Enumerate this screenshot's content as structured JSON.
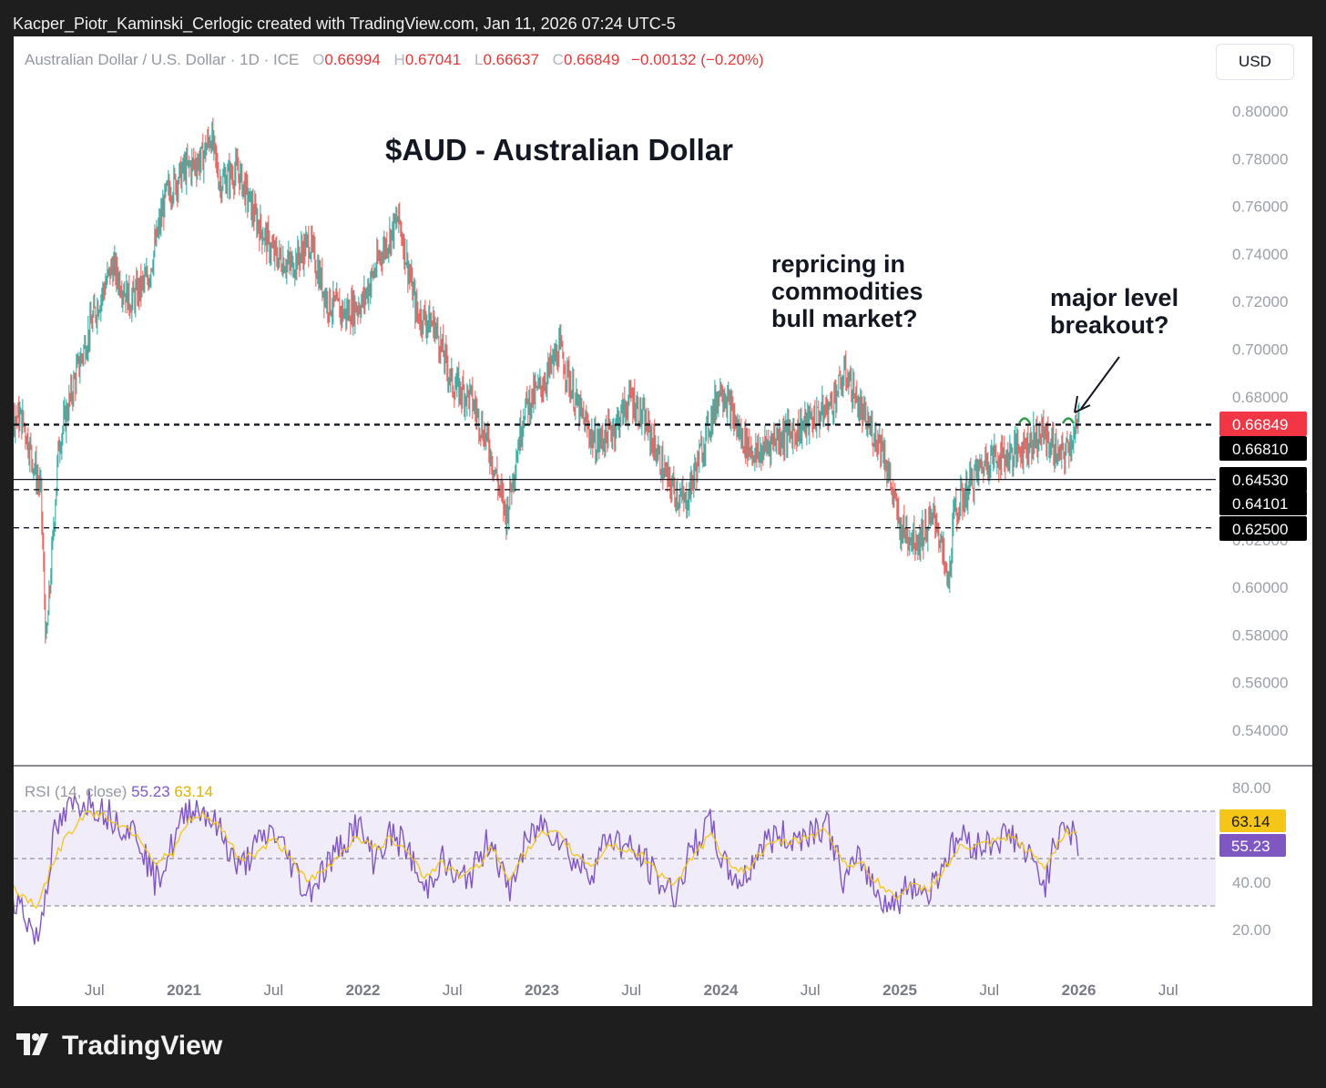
{
  "header": {
    "text": "Kacper_Piotr_Kaminski_Cerlogic created with TradingView.com, Jan 11, 2026 07:24 UTC-5"
  },
  "legend": {
    "symbol": "Australian Dollar / U.S. Dollar · 1D · ICE",
    "o_label": "O",
    "o": "0.66994",
    "h_label": "H",
    "h": "0.67041",
    "l_label": "L",
    "l": "0.66637",
    "c_label": "C",
    "c": "0.66849",
    "change": "−0.00132 (−0.20%)"
  },
  "currency_button": "USD",
  "annotations": {
    "title": "$AUD - Australian Dollar",
    "repricing": [
      "repricing in",
      "commodities",
      "bull market?"
    ],
    "breakout": [
      "major level",
      "breakout?"
    ]
  },
  "rsi_label": {
    "name": "RSI (14, close)",
    "rsi": "55.23",
    "ma": "63.14"
  },
  "brand": "TradingView",
  "colors": {
    "up": "#26a69a",
    "down": "#ef5350",
    "rsi": "#7e57c2",
    "rsi_ma": "#f5c518",
    "rsi_band": "#f0ecfa",
    "last_price": "#f23645"
  },
  "chart_data": [
    {
      "type": "line",
      "description_kind": "candlestick price series",
      "y_range": [
        0.53,
        0.81
      ],
      "y_ticks": [
        "0.80000",
        "0.78000",
        "0.76000",
        "0.74000",
        "0.72000",
        "0.70000",
        "0.68000",
        "0.66000",
        "0.64000",
        "0.62000",
        "0.60000",
        "0.58000",
        "0.56000",
        "0.54000"
      ],
      "x_ticks": [
        "Jul",
        "2021",
        "Jul",
        "2022",
        "Jul",
        "2023",
        "Jul",
        "2024",
        "Jul",
        "2025",
        "Jul",
        "2026",
        "Jul"
      ],
      "x": [
        2019.9,
        2020.0,
        2020.1,
        2020.2,
        2020.23,
        2020.3,
        2020.4,
        2020.5,
        2020.6,
        2020.7,
        2020.8,
        2020.9,
        2021.0,
        2021.1,
        2021.15,
        2021.2,
        2021.3,
        2021.4,
        2021.5,
        2021.6,
        2021.7,
        2021.8,
        2021.9,
        2022.0,
        2022.1,
        2022.2,
        2022.3,
        2022.4,
        2022.5,
        2022.6,
        2022.7,
        2022.8,
        2022.9,
        2023.0,
        2023.1,
        2023.2,
        2023.3,
        2023.4,
        2023.5,
        2023.6,
        2023.7,
        2023.8,
        2023.9,
        2024.0,
        2024.1,
        2024.2,
        2024.3,
        2024.4,
        2024.5,
        2024.6,
        2024.7,
        2024.8,
        2024.9,
        2025.0,
        2025.1,
        2025.2,
        2025.27,
        2025.3,
        2025.4,
        2025.5,
        2025.6,
        2025.7,
        2025.8,
        2025.9,
        2026.0
      ],
      "y": [
        0.688,
        0.675,
        0.67,
        0.64,
        0.575,
        0.66,
        0.69,
        0.715,
        0.735,
        0.72,
        0.73,
        0.765,
        0.775,
        0.78,
        0.79,
        0.77,
        0.775,
        0.755,
        0.74,
        0.735,
        0.745,
        0.72,
        0.715,
        0.72,
        0.74,
        0.755,
        0.715,
        0.71,
        0.685,
        0.68,
        0.66,
        0.63,
        0.675,
        0.685,
        0.7,
        0.675,
        0.66,
        0.667,
        0.68,
        0.665,
        0.645,
        0.635,
        0.66,
        0.685,
        0.665,
        0.655,
        0.663,
        0.665,
        0.67,
        0.675,
        0.69,
        0.67,
        0.66,
        0.625,
        0.62,
        0.63,
        0.6,
        0.63,
        0.645,
        0.655,
        0.655,
        0.66,
        0.665,
        0.654,
        0.668
      ],
      "horizontal_levels": [
        {
          "value": 0.66849,
          "label": "0.66849",
          "style": "last-price"
        },
        {
          "value": 0.6681,
          "label": "0.66810",
          "style": "dashed"
        },
        {
          "value": 0.6453,
          "label": "0.64530",
          "style": "solid"
        },
        {
          "value": 0.64101,
          "label": "0.64101",
          "style": "dashed"
        },
        {
          "value": 0.625,
          "label": "0.62500",
          "style": "dashed"
        }
      ]
    },
    {
      "type": "line",
      "description_kind": "RSI indicator",
      "y_range": [
        10,
        86
      ],
      "y_ticks": [
        "80.00",
        "40.00",
        "20.00"
      ],
      "band": [
        30,
        70
      ],
      "midline": 50,
      "series": [
        {
          "name": "55.23",
          "last_label": "55.23",
          "values": [
            45,
            40,
            30,
            15,
            60,
            72,
            75,
            70,
            65,
            60,
            40,
            55,
            72,
            70,
            60,
            45,
            55,
            62,
            50,
            35,
            45,
            55,
            65,
            50,
            60,
            55,
            35,
            50,
            40,
            45,
            60,
            35,
            55,
            65,
            60,
            48,
            45,
            60,
            55,
            50,
            40,
            35,
            55,
            65,
            45,
            40,
            55,
            60,
            58,
            62,
            65,
            40,
            50,
            35,
            30,
            40,
            35,
            50,
            60,
            55,
            58,
            60,
            50,
            40,
            68,
            55
          ]
        },
        {
          "name": "63.14",
          "last_label": "63.14",
          "values": [
            45,
            42,
            35,
            30,
            50,
            62,
            70,
            68,
            64,
            60,
            48,
            52,
            66,
            68,
            62,
            50,
            52,
            58,
            52,
            40,
            44,
            52,
            60,
            54,
            58,
            55,
            42,
            48,
            43,
            45,
            55,
            42,
            52,
            60,
            60,
            52,
            47,
            56,
            54,
            51,
            44,
            39,
            50,
            60,
            50,
            44,
            52,
            57,
            57,
            60,
            62,
            48,
            48,
            40,
            34,
            38,
            37,
            46,
            55,
            55,
            57,
            59,
            53,
            46,
            60,
            63
          ]
        }
      ]
    }
  ]
}
